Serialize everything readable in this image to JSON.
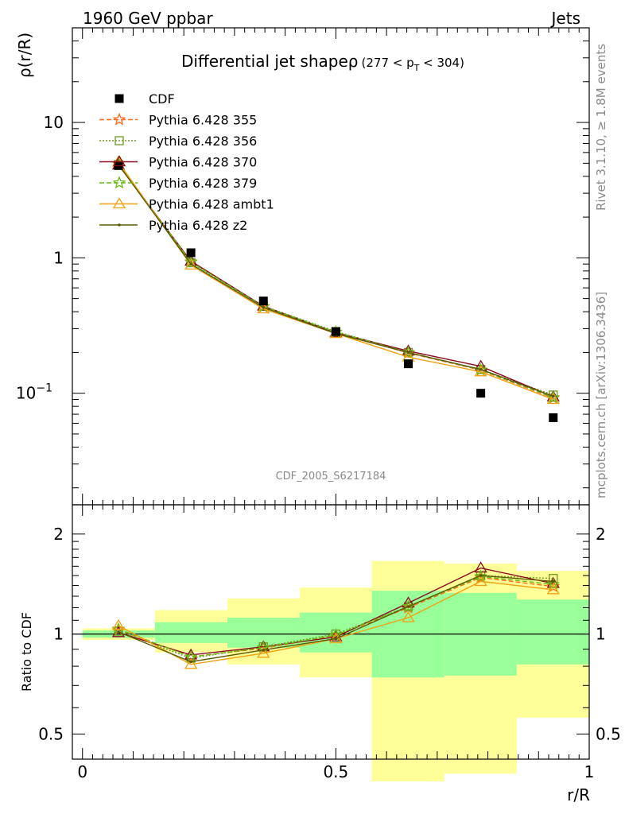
{
  "header": {
    "left": "1960 GeV ppbar",
    "right": "Jets",
    "side_top": "Rivet 3.1.10, ≥ 1.8M events",
    "side_bottom": "mcplots.cern.ch [arXiv:1306.3436]",
    "analysis_id": "CDF_2005_S6217184"
  },
  "chart_data": [
    {
      "type": "line",
      "title": "Differential jet shape",
      "title_rho": "ρ",
      "title_range": "(277 < p",
      "title_sub": "T",
      "title_range_end": " < 304)",
      "xlabel": "r/R",
      "ylabel": "ρ(r/R)",
      "yscale": "log",
      "xlim": [
        -0.02,
        1.0
      ],
      "ylim": [
        0.015,
        50
      ],
      "y_ticks": [
        {
          "value": 10,
          "label": "10"
        },
        {
          "value": 1,
          "label": "1"
        },
        {
          "value": 0.1,
          "label": "10",
          "exp": "−1"
        }
      ],
      "x": [
        0.071,
        0.214,
        0.357,
        0.5,
        0.643,
        0.786,
        0.929
      ],
      "data": {
        "name": "CDF",
        "color": "#000000",
        "values": [
          4.8,
          1.09,
          0.48,
          0.285,
          0.165,
          0.1,
          0.066
        ]
      },
      "series": [
        {
          "name": "Pythia 6.428 355",
          "color": "#ff6a1a",
          "marker": "star",
          "dash": "6,3",
          "values": [
            4.95,
            0.935,
            0.435,
            0.282,
            0.198,
            0.148,
            0.092
          ]
        },
        {
          "name": "Pythia 6.428 356",
          "color": "#6e9a1e",
          "marker": "square-open",
          "dash": "2,2",
          "values": [
            4.9,
            0.92,
            0.44,
            0.286,
            0.2,
            0.15,
            0.097
          ]
        },
        {
          "name": "Pythia 6.428 370",
          "color": "#8b0a1e",
          "marker": "triangle-open",
          "dash": "",
          "values": [
            4.85,
            0.945,
            0.44,
            0.28,
            0.205,
            0.158,
            0.094
          ]
        },
        {
          "name": "Pythia 6.428 379",
          "color": "#66bb11",
          "marker": "star",
          "dash": "6,3",
          "values": [
            4.97,
            0.93,
            0.437,
            0.283,
            0.2,
            0.149,
            0.093
          ]
        },
        {
          "name": "Pythia 6.428 ambt1",
          "color": "#f0a010",
          "marker": "triangle-open",
          "dash": "",
          "values": [
            5.1,
            0.885,
            0.42,
            0.276,
            0.185,
            0.144,
            0.09
          ]
        },
        {
          "name": "Pythia 6.428 z2",
          "color": "#5a5a00",
          "marker": "dot",
          "dash": "",
          "values": [
            4.88,
            0.9,
            0.43,
            0.276,
            0.2,
            0.15,
            0.095
          ]
        }
      ]
    },
    {
      "type": "line",
      "ylabel": "Ratio to CDF",
      "xlabel": "r/R",
      "xlim": [
        -0.02,
        1.0
      ],
      "ylim": [
        0.42,
        2.45
      ],
      "yscale": "log",
      "y_ticks": [
        {
          "value": 0.5,
          "label": "0.5"
        },
        {
          "value": 1,
          "label": "1"
        },
        {
          "value": 2,
          "label": "2"
        }
      ],
      "x_ticks": [
        {
          "value": 0,
          "label": "0"
        },
        {
          "value": 0.5,
          "label": "0.5"
        },
        {
          "value": 1,
          "label": "1"
        }
      ],
      "bins": [
        [
          0.0,
          0.143
        ],
        [
          0.143,
          0.286
        ],
        [
          0.286,
          0.429
        ],
        [
          0.429,
          0.571
        ],
        [
          0.571,
          0.714
        ],
        [
          0.714,
          0.857
        ],
        [
          0.857,
          1.0
        ]
      ],
      "band_stat": [
        [
          0.975,
          1.025
        ],
        [
          0.94,
          1.085
        ],
        [
          0.91,
          1.12
        ],
        [
          0.88,
          1.16
        ],
        [
          0.74,
          1.35
        ],
        [
          0.75,
          1.33
        ],
        [
          0.81,
          1.27
        ]
      ],
      "band_total": [
        [
          0.96,
          1.04
        ],
        [
          0.88,
          1.18
        ],
        [
          0.81,
          1.28
        ],
        [
          0.74,
          1.38
        ],
        [
          0.36,
          1.66
        ],
        [
          0.38,
          1.63
        ],
        [
          0.56,
          1.55
        ]
      ],
      "series": [
        {
          "name": "Pythia 6.428 355",
          "values": [
            1.03,
            0.855,
            0.905,
            0.99,
            1.2,
            1.48,
            1.39
          ]
        },
        {
          "name": "Pythia 6.428 356",
          "values": [
            1.02,
            0.845,
            0.915,
            1.0,
            1.21,
            1.5,
            1.47
          ]
        },
        {
          "name": "Pythia 6.428 370",
          "values": [
            1.01,
            0.865,
            0.915,
            0.98,
            1.24,
            1.58,
            1.42
          ]
        },
        {
          "name": "Pythia 6.428 379",
          "values": [
            1.035,
            0.853,
            0.91,
            0.993,
            1.21,
            1.49,
            1.41
          ]
        },
        {
          "name": "Pythia 6.428 ambt1",
          "values": [
            1.06,
            0.81,
            0.875,
            0.968,
            1.12,
            1.44,
            1.36
          ]
        },
        {
          "name": "Pythia 6.428 z2",
          "values": [
            1.015,
            0.825,
            0.895,
            0.968,
            1.21,
            1.5,
            1.44
          ]
        }
      ]
    }
  ]
}
